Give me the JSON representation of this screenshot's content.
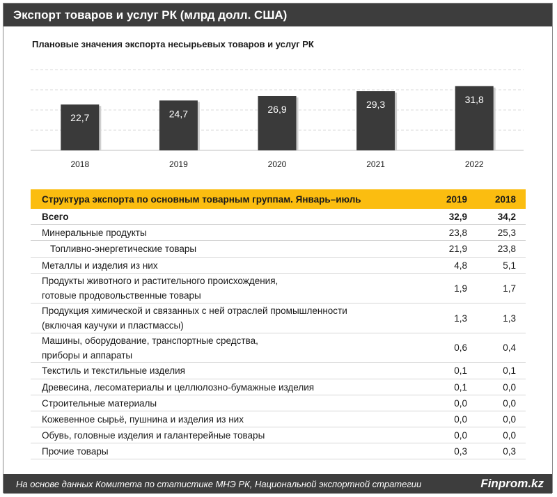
{
  "header": {
    "title": "Экспорт товаров и услуг РК (млрд долл. США)"
  },
  "chart_data": {
    "type": "bar",
    "title": "Плановые значения экспорта  несырьевых товаров  и услуг РК",
    "categories": [
      "2018",
      "2019",
      "2020",
      "2021",
      "2022"
    ],
    "values": [
      22.7,
      24.7,
      26.9,
      29.3,
      31.8
    ],
    "data_labels": [
      "22,7",
      "24,7",
      "26,9",
      "29,3",
      "31,8"
    ],
    "ylim": [
      0,
      40
    ],
    "grid": true,
    "bar_color": "#3a3a3a"
  },
  "table": {
    "title": "Структура экспорта по основным товарным группам. Январь–июль",
    "columns": [
      "2019",
      "2018"
    ],
    "rows": [
      {
        "label": "Всего",
        "lines": [
          "Всего"
        ],
        "v2019": "32,9",
        "v2018": "34,2",
        "bold": true
      },
      {
        "label": "Минеральные продукты",
        "lines": [
          "Минеральные продукты"
        ],
        "v2019": "23,8",
        "v2018": "25,3"
      },
      {
        "label": "Топливно-энергетические товары",
        "lines": [
          "Топливно-энергетические товары"
        ],
        "v2019": "21,9",
        "v2018": "23,8",
        "indent": true
      },
      {
        "label": "Металлы и изделия из них",
        "lines": [
          "Металлы и изделия из них"
        ],
        "v2019": "4,8",
        "v2018": "5,1"
      },
      {
        "label": "Продукты животного и растительного происхождения, готовые продовольственные товары",
        "lines": [
          "Продукты животного и растительного происхождения,",
          "готовые продовольственные товары"
        ],
        "v2019": "1,9",
        "v2018": "1,7"
      },
      {
        "label": "Продукция химической и связанных с ней отраслей промышленности (включая каучуки и пластмассы)",
        "lines": [
          "Продукция химической и связанных с ней отраслей промышленности",
          "(включая каучуки и пластмассы)"
        ],
        "v2019": "1,3",
        "v2018": "1,3"
      },
      {
        "label": "Машины, оборудование, транспортные средства, приборы и аппараты",
        "lines": [
          "Машины, оборудование, транспортные средства,",
          "приборы и аппараты"
        ],
        "v2019": "0,6",
        "v2018": "0,4"
      },
      {
        "label": "Текстиль и текстильные изделия",
        "lines": [
          "Текстиль и текстильные изделия"
        ],
        "v2019": "0,1",
        "v2018": "0,1"
      },
      {
        "label": "Древесина, лесоматериалы и целлюлозно-бумажные изделия",
        "lines": [
          "Древесина, лесоматериалы и целлюлозно-бумажные изделия"
        ],
        "v2019": "0,1",
        "v2018": "0,0"
      },
      {
        "label": "Строительные материалы",
        "lines": [
          "Строительные материалы"
        ],
        "v2019": "0,0",
        "v2018": "0,0"
      },
      {
        "label": "Кожевенное сырьё, пушнина и изделия из них",
        "lines": [
          "Кожевенное сырьё, пушнина и изделия из них"
        ],
        "v2019": "0,0",
        "v2018": "0,0"
      },
      {
        "label": "Обувь, головные изделия и галантерейные товары",
        "lines": [
          "Обувь, головные изделия и галантерейные товары"
        ],
        "v2019": "0,0",
        "v2018": "0,0"
      },
      {
        "label": "Прочие товары",
        "lines": [
          "Прочие товары"
        ],
        "v2019": "0,3",
        "v2018": "0,3"
      }
    ]
  },
  "footer": {
    "source": "На основе данных  Комитета по статистике МНЭ РК, Национальной  экспортной стратегии",
    "brand": "Finprom.kz"
  },
  "colors": {
    "header_bg": "#3d3d3d",
    "table_header_bg": "#fbbd10"
  }
}
